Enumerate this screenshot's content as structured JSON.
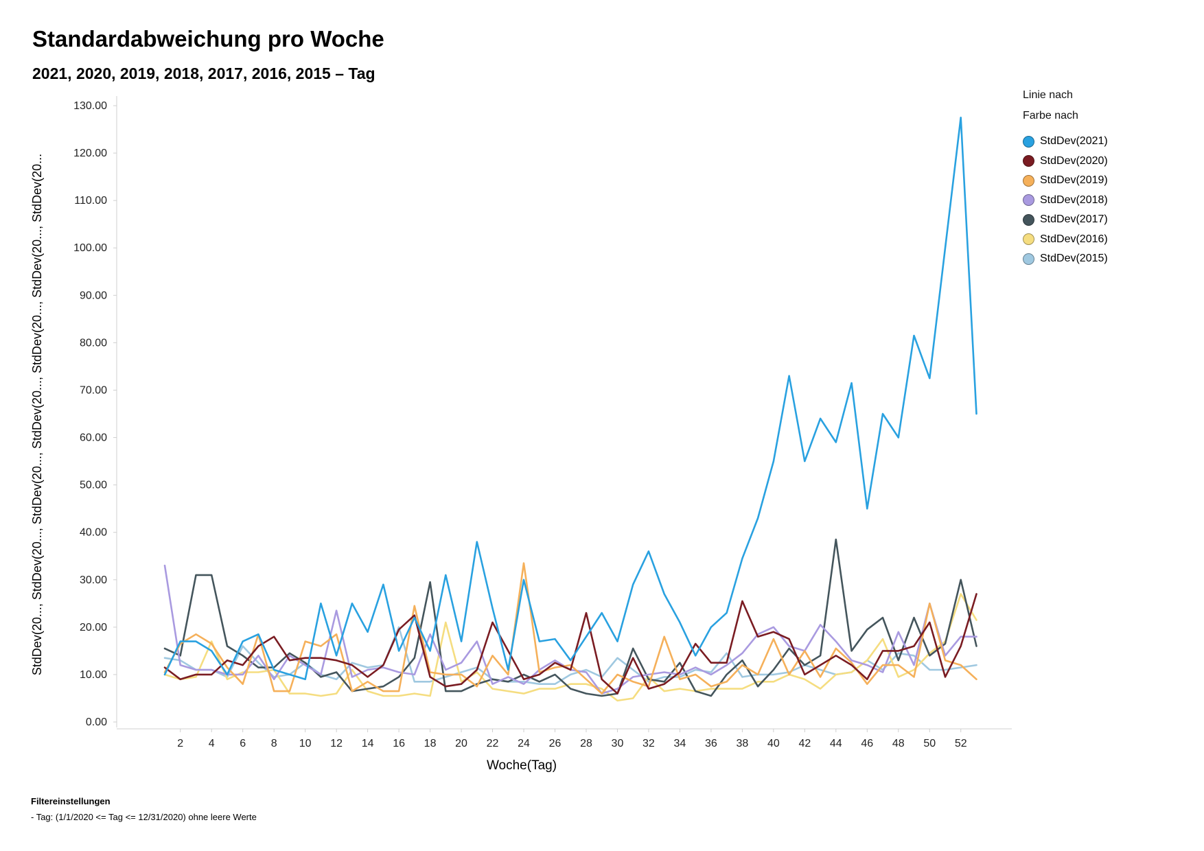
{
  "title": "Standardabweichung pro Woche",
  "subtitle": "2021, 2020, 2019, 2018, 2017, 2016, 2015  –  Tag",
  "legend": {
    "line_by_label": "Linie nach",
    "color_by_label": "Farbe nach"
  },
  "filter": {
    "heading": "Filtereinstellungen",
    "line": "-  Tag: (1/1/2020 <= Tag <= 12/31/2020) ohne leere Werte"
  },
  "chart_data": {
    "type": "line",
    "xlabel": "Woche(Tag)",
    "ylabel": "StdDev(20..., StdDev(20..., StdDev(20..., StdDev(20..., StdDev(20..., StdDev(20..., StdDev(20...",
    "ylim": [
      0,
      130
    ],
    "xlim": [
      1,
      53
    ],
    "y_ticks": [
      "0.00",
      "10.00",
      "20.00",
      "30.00",
      "40.00",
      "50.00",
      "60.00",
      "70.00",
      "80.00",
      "90.00",
      "100.00",
      "110.00",
      "120.00",
      "130.00"
    ],
    "x_ticks": [
      2,
      4,
      6,
      8,
      10,
      12,
      14,
      16,
      18,
      20,
      22,
      24,
      26,
      28,
      30,
      32,
      34,
      36,
      38,
      40,
      42,
      44,
      46,
      48,
      50,
      52
    ],
    "x": [
      1,
      2,
      3,
      4,
      5,
      6,
      7,
      8,
      9,
      10,
      11,
      12,
      13,
      14,
      15,
      16,
      17,
      18,
      19,
      20,
      21,
      22,
      23,
      24,
      25,
      26,
      27,
      28,
      29,
      30,
      31,
      32,
      33,
      34,
      35,
      36,
      37,
      38,
      39,
      40,
      41,
      42,
      43,
      44,
      45,
      46,
      47,
      48,
      49,
      50,
      51,
      52,
      53
    ],
    "legend_position": "right",
    "grid": false,
    "series": [
      {
        "name": "StdDev(2021)",
        "color": "#29a1e0",
        "values": [
          10,
          17,
          17,
          15,
          10,
          17,
          18.5,
          11,
          10,
          9,
          25,
          14,
          25,
          19,
          29,
          15,
          22,
          15,
          31,
          17,
          38,
          24,
          11,
          30,
          17,
          17.5,
          13,
          18,
          23,
          17,
          29,
          36,
          27,
          21,
          14,
          20,
          23,
          34.5,
          43,
          55,
          73,
          55,
          64,
          59,
          71.5,
          45,
          65,
          60,
          81.5,
          72.5,
          100,
          127.5,
          65
        ]
      },
      {
        "name": "StdDev(2020)",
        "color": "#7a1c22",
        "values": [
          11.5,
          9,
          10,
          10,
          13,
          12,
          16,
          18,
          13,
          13.5,
          13.5,
          13,
          12,
          9.5,
          12,
          19.5,
          22.5,
          9.5,
          7.5,
          8,
          11,
          21,
          15,
          9,
          10,
          12.5,
          11,
          23,
          9,
          6,
          13.5,
          7,
          8,
          10.5,
          16.5,
          12.5,
          12.5,
          25.5,
          18,
          19,
          17.5,
          10,
          12,
          14,
          12,
          9,
          15,
          15,
          16,
          21,
          9.5,
          16,
          27
        ]
      },
      {
        "name": "StdDev(2019)",
        "color": "#f5b05a",
        "values": [
          10.5,
          16.5,
          18.5,
          16.5,
          11.5,
          8,
          18.5,
          6.5,
          6.5,
          17,
          16,
          18.5,
          6.5,
          8.5,
          6.5,
          6.5,
          24.5,
          10.5,
          10,
          10,
          7.5,
          14,
          10,
          33.5,
          10.5,
          11.5,
          12,
          9,
          6,
          10,
          8.5,
          7.5,
          18,
          9,
          10,
          7.5,
          8.5,
          12,
          10,
          17.5,
          10,
          15,
          9.5,
          15.5,
          12.5,
          8,
          12,
          12,
          9.5,
          25,
          13,
          12,
          9
        ]
      },
      {
        "name": "StdDev(2018)",
        "color": "#a99ae0",
        "values": [
          33,
          12,
          11,
          11,
          10,
          10,
          14,
          9,
          14,
          12,
          10,
          23.5,
          9.5,
          11,
          11.5,
          10.5,
          10,
          18.5,
          11,
          12.5,
          17,
          8,
          9.5,
          8,
          11,
          13,
          11,
          10.5,
          6,
          7,
          9.5,
          10,
          10.5,
          10,
          11.5,
          10,
          12,
          14.5,
          18.5,
          20,
          16,
          15,
          20.5,
          17,
          13,
          12,
          10.5,
          19,
          12,
          25,
          14,
          18,
          18
        ]
      },
      {
        "name": "StdDev(2017)",
        "color": "#44555c",
        "values": [
          15.5,
          14,
          31,
          31,
          16,
          14,
          11.5,
          11.5,
          14.5,
          12.5,
          9.5,
          10.5,
          6.5,
          7,
          7.5,
          9.5,
          13.5,
          29.5,
          6.5,
          6.5,
          8,
          9,
          8.5,
          10,
          8.5,
          10,
          7,
          6,
          5.5,
          6,
          15.5,
          9,
          8.5,
          12.5,
          6.5,
          5.5,
          10,
          13,
          7.5,
          11,
          15.5,
          12,
          14,
          38.5,
          15,
          19.5,
          22,
          13,
          22,
          14,
          16.5,
          30,
          16
        ]
      },
      {
        "name": "StdDev(2016)",
        "color": "#f5dd80",
        "values": [
          10,
          9,
          9.5,
          17,
          9,
          10.5,
          10.5,
          11,
          6,
          6,
          5.5,
          6,
          11,
          6.5,
          5.5,
          5.5,
          6,
          5.5,
          21,
          8.5,
          10.5,
          7,
          6.5,
          6,
          7,
          7,
          8,
          8,
          7,
          4.5,
          5,
          9.5,
          6.5,
          7,
          6.5,
          7,
          7,
          7,
          8.5,
          8.5,
          10,
          9,
          7,
          10,
          10.5,
          13,
          17.5,
          9.5,
          11,
          14.5,
          17,
          27,
          21.5
        ]
      },
      {
        "name": "StdDev(2015)",
        "color": "#9fc8e0",
        "values": [
          13.5,
          13,
          11,
          11,
          9.5,
          16,
          12.5,
          9.5,
          10,
          12.5,
          10,
          9,
          12.5,
          11.5,
          12,
          20,
          8.5,
          8.5,
          9.5,
          10.5,
          11.5,
          9,
          8.5,
          8.5,
          8,
          8,
          10,
          11,
          9.5,
          13.5,
          11,
          8.5,
          9.5,
          9.5,
          11,
          10.5,
          14.5,
          9.5,
          10,
          10,
          10.5,
          12,
          11,
          10,
          10.5,
          13,
          11,
          14.5,
          14,
          11,
          11,
          11.5,
          12
        ]
      }
    ]
  }
}
